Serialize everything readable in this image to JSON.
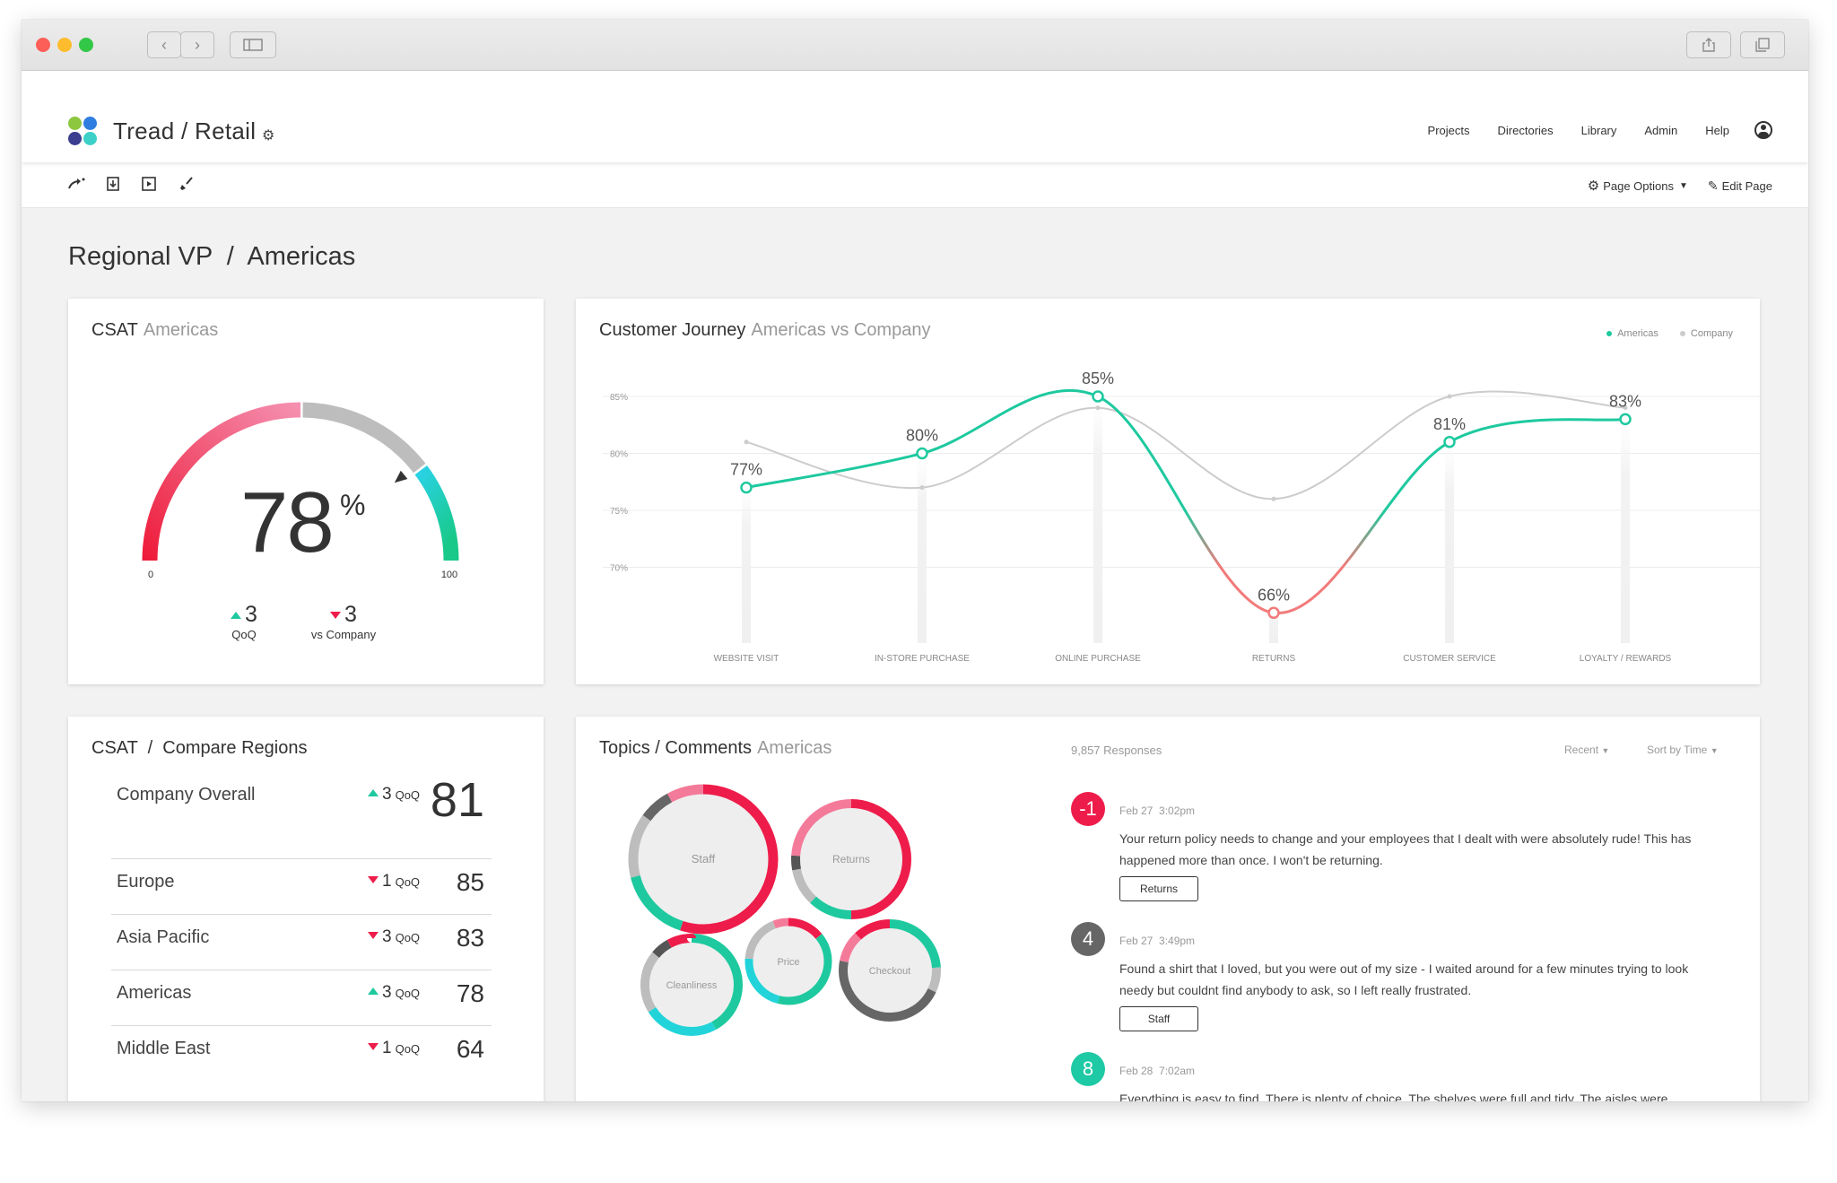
{
  "app": {
    "title": "Tread / Retail",
    "nav": [
      "Projects",
      "Directories",
      "Library",
      "Admin",
      "Help"
    ],
    "page_options_label": "Page Options",
    "edit_page_label": "Edit Page"
  },
  "page": {
    "title": "Regional VP  /  Americas"
  },
  "csat_gauge": {
    "title": "CSAT",
    "subtitle": "Americas",
    "value": "78",
    "percent_sign": "%",
    "min_label": "0",
    "max_label": "100",
    "value_fraction": 0.78,
    "qoq": {
      "value": "3",
      "label": "QoQ",
      "direction": "up"
    },
    "vs_company": {
      "value": "3",
      "label": "vs Company",
      "direction": "down"
    }
  },
  "journey": {
    "title": "Customer Journey",
    "subtitle": "Americas vs Company",
    "legend": [
      "Americas",
      "Company"
    ]
  },
  "chart_data": {
    "type": "line",
    "categories": [
      "WEBSITE VISIT",
      "IN-STORE PURCHASE",
      "ONLINE PURCHASE",
      "RETURNS",
      "CUSTOMER SERVICE",
      "LOYALTY / REWARDS"
    ],
    "y_ticks": [
      "85%",
      "80%",
      "75%",
      "70%"
    ],
    "y_tick_values": [
      85,
      80,
      75,
      70
    ],
    "series": [
      {
        "name": "Americas",
        "values": [
          77,
          80,
          85,
          66,
          81,
          83
        ],
        "labels": [
          "77%",
          "80%",
          "85%",
          "66%",
          "81%",
          "83%"
        ],
        "color": "#1ec99f",
        "low_color": "#f27a7a"
      },
      {
        "name": "Company",
        "values": [
          81,
          77,
          84,
          76,
          85,
          84
        ],
        "color": "#cccccc"
      }
    ],
    "ylim": [
      62,
      88
    ],
    "grid": true,
    "legend_position": "top-right"
  },
  "regions": {
    "title": "CSAT  /  Compare Regions",
    "rows": [
      {
        "name": "Company Overall",
        "delta": "3",
        "delta_label": "QoQ",
        "direction": "up",
        "value": "81"
      },
      {
        "name": "Europe",
        "delta": "1",
        "delta_label": "QoQ",
        "direction": "down",
        "value": "85"
      },
      {
        "name": "Asia Pacific",
        "delta": "3",
        "delta_label": "QoQ",
        "direction": "down",
        "value": "83"
      },
      {
        "name": "Americas",
        "delta": "3",
        "delta_label": "QoQ",
        "direction": "up",
        "value": "78"
      },
      {
        "name": "Middle East",
        "delta": "1",
        "delta_label": "QoQ",
        "direction": "down",
        "value": "64"
      }
    ]
  },
  "topics": {
    "title": "Topics / Comments",
    "subtitle": "Americas",
    "responses": "9,857",
    "responses_label": "Responses",
    "sort_recent": "Recent",
    "sort_time": "Sort by Time",
    "bubbles": [
      {
        "label": "Staff",
        "segments": [
          {
            "color": "#ee1c4a",
            "v": 0.55
          },
          {
            "color": "#1ec99f",
            "v": 0.16
          },
          {
            "color": "#bdbdbd",
            "v": 0.14
          },
          {
            "color": "#666666",
            "v": 0.07
          },
          {
            "color": "#f47a9a",
            "v": 0.08
          }
        ]
      },
      {
        "label": "Returns",
        "segments": [
          {
            "color": "#ee1c4a",
            "v": 0.5
          },
          {
            "color": "#1ec99f",
            "v": 0.12
          },
          {
            "color": "#bdbdbd",
            "v": 0.1
          },
          {
            "color": "#555555",
            "v": 0.04
          },
          {
            "color": "#f47a9a",
            "v": 0.24
          }
        ]
      },
      {
        "label": "Price",
        "segments": [
          {
            "color": "#ee1c4a",
            "v": 0.14
          },
          {
            "color": "#1ec99f",
            "v": 0.4
          },
          {
            "color": "#22d4d9",
            "v": 0.22
          },
          {
            "color": "#bdbdbd",
            "v": 0.18
          },
          {
            "color": "#f47a9a",
            "v": 0.06
          }
        ]
      },
      {
        "label": "Cleanliness",
        "segments": [
          {
            "color": "#1ec99f",
            "v": 0.42
          },
          {
            "color": "#22d4d9",
            "v": 0.24
          },
          {
            "color": "#bdbdbd",
            "v": 0.2
          },
          {
            "color": "#555555",
            "v": 0.06
          },
          {
            "color": "#ee1c4a",
            "v": 0.08
          }
        ]
      },
      {
        "label": "Checkout",
        "segments": [
          {
            "color": "#1ec99f",
            "v": 0.24
          },
          {
            "color": "#bdbdbd",
            "v": 0.08
          },
          {
            "color": "#666666",
            "v": 0.46
          },
          {
            "color": "#f47a9a",
            "v": 0.1
          },
          {
            "color": "#ee1c4a",
            "v": 0.12
          }
        ]
      }
    ],
    "comments": [
      {
        "score": "-1",
        "color": "#ee1c4a",
        "date": "Feb 27",
        "time": "3:02pm",
        "text": "Your return policy needs to change and your employees that I dealt with were absolutely rude!  This has happened more than once.  I won't be returning.",
        "tag": "Returns"
      },
      {
        "score": "4",
        "color": "#666666",
        "date": "Feb 27",
        "time": "3:49pm",
        "text": "Found a shirt that I loved, but you were out of my size - I waited around for a few minutes trying to look needy but couldnt find anybody to ask, so I left really frustrated.",
        "tag": "Staff"
      },
      {
        "score": "8",
        "color": "#1ec9a5",
        "date": "Feb 28",
        "time": "7:02am",
        "text": "Everything is easy to find. There is plenty of choice. The shelves were full and tidy. The aisles were",
        "tag": ""
      }
    ]
  },
  "colors": {
    "green": "#1ec99f",
    "red": "#ee1c4a",
    "pink": "#f47a9a",
    "gray": "#bdbdbd",
    "dark": "#333333"
  }
}
